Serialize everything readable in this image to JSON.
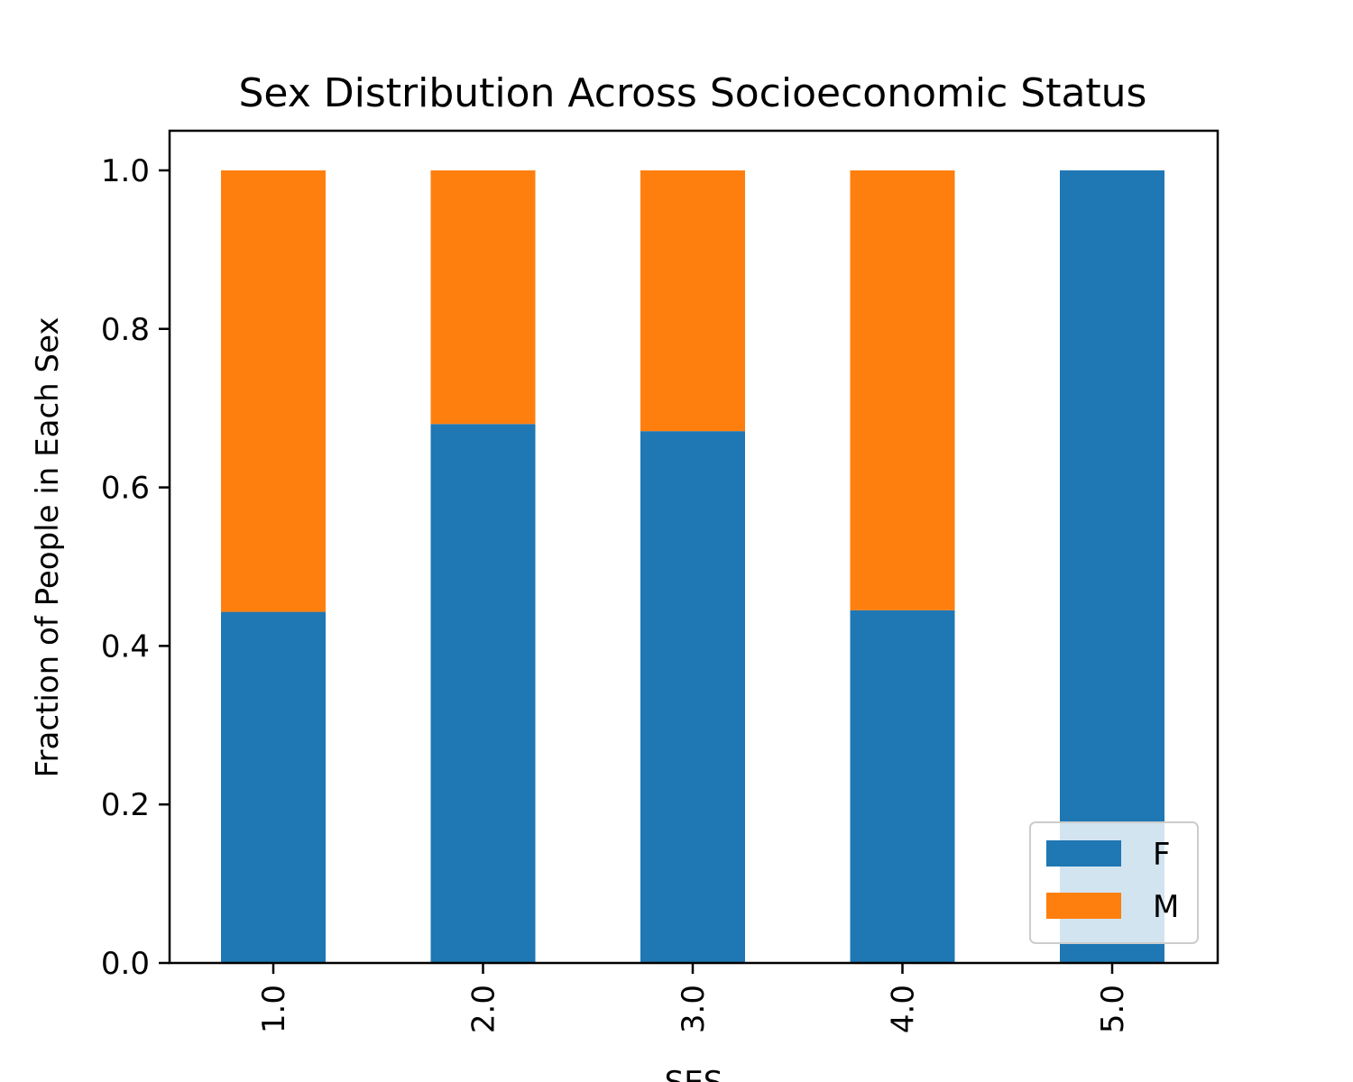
{
  "chart_data": {
    "type": "bar",
    "stacked": true,
    "title": "Sex Distribution Across Socioeconomic Status",
    "xlabel": "SES",
    "ylabel": "Fraction of People in Each Sex",
    "categories": [
      "1.0",
      "2.0",
      "3.0",
      "4.0",
      "5.0"
    ],
    "series": [
      {
        "name": "F",
        "color": "#1f77b4",
        "values": [
          0.443,
          0.68,
          0.671,
          0.445,
          1.0
        ]
      },
      {
        "name": "M",
        "color": "#ff7f0e",
        "values": [
          0.557,
          0.32,
          0.329,
          0.555,
          0.0
        ]
      }
    ],
    "ylim": [
      0,
      1.05
    ],
    "yticks": [
      "0.0",
      "0.2",
      "0.4",
      "0.6",
      "0.8",
      "1.0"
    ],
    "grid": false,
    "legend_position": "lower right",
    "xtick_rotation": "vertical"
  }
}
